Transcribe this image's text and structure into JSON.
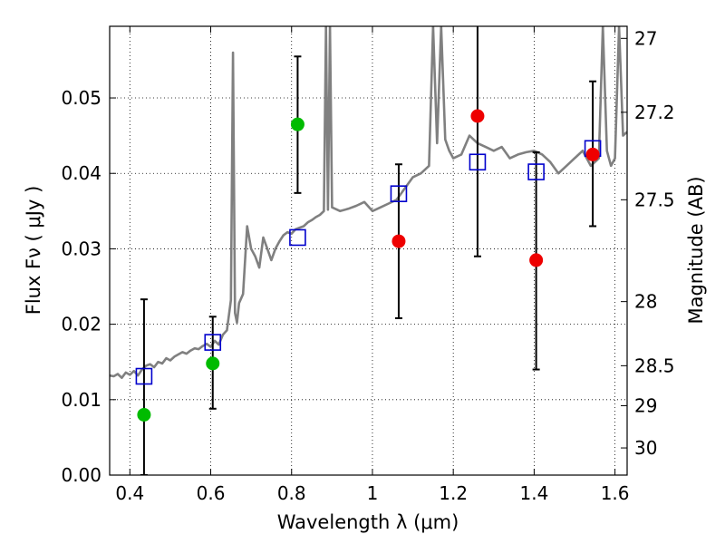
{
  "chart_data": {
    "type": "scatter",
    "xlabel": "Wavelength  λ (μm)",
    "ylabel": "Flux  Fν  ( μJy )",
    "ylabel_right": "Magnitude (AB)",
    "xlim": [
      0.35,
      1.63
    ],
    "ylim": [
      0.0,
      0.0595
    ],
    "x_ticks": [
      0.4,
      0.6,
      0.8,
      1.0,
      1.2,
      1.4,
      1.6
    ],
    "x_tick_labels": [
      "0.4",
      "0.6",
      "0.8",
      "1",
      "1.2",
      "1.4",
      "1.6"
    ],
    "y_ticks": [
      0.0,
      0.01,
      0.02,
      0.03,
      0.04,
      0.05
    ],
    "y_tick_labels": [
      "0.00",
      "0.01",
      "0.02",
      "0.03",
      "0.04",
      "0.05"
    ],
    "right_ticks": [
      {
        "label": "27",
        "flux": 0.0579
      },
      {
        "label": "27.2",
        "flux": 0.0481
      },
      {
        "label": "27.5",
        "flux": 0.0365
      },
      {
        "label": "28",
        "flux": 0.023
      },
      {
        "label": "28.5",
        "flux": 0.0145
      },
      {
        "label": "29",
        "flux": 0.0092
      },
      {
        "label": "30",
        "flux": 0.0036
      }
    ],
    "grid": true,
    "colors": {
      "spectrum": "#808080",
      "model": "#0000cc",
      "detections_green": "#00bb00",
      "detections_red": "#ee0000",
      "errorbar": "#000000"
    },
    "series": [
      {
        "kind": "line",
        "x": [
          0.35,
          0.36,
          0.37,
          0.38,
          0.39,
          0.4,
          0.41,
          0.42,
          0.43,
          0.44,
          0.45,
          0.46,
          0.47,
          0.48,
          0.49,
          0.5,
          0.51,
          0.52,
          0.53,
          0.54,
          0.55,
          0.56,
          0.57,
          0.58,
          0.59,
          0.6,
          0.61,
          0.62,
          0.63,
          0.64,
          0.65,
          0.655,
          0.66,
          0.665,
          0.67,
          0.68,
          0.69,
          0.7,
          0.71,
          0.72,
          0.73,
          0.74,
          0.75,
          0.76,
          0.77,
          0.78,
          0.79,
          0.8,
          0.81,
          0.82,
          0.83,
          0.84,
          0.85,
          0.86,
          0.87,
          0.88,
          0.885,
          0.89,
          0.895,
          0.9,
          0.92,
          0.94,
          0.96,
          0.98,
          1.0,
          1.02,
          1.04,
          1.06,
          1.08,
          1.1,
          1.12,
          1.14,
          1.15,
          1.16,
          1.17,
          1.18,
          1.19,
          1.2,
          1.22,
          1.24,
          1.26,
          1.28,
          1.3,
          1.32,
          1.34,
          1.36,
          1.38,
          1.4,
          1.42,
          1.44,
          1.46,
          1.48,
          1.5,
          1.52,
          1.54,
          1.56,
          1.57,
          1.58,
          1.59,
          1.6,
          1.61,
          1.62,
          1.63
        ],
        "values": [
          0.0132,
          0.0131,
          0.0134,
          0.0129,
          0.0136,
          0.0133,
          0.0138,
          0.0132,
          0.014,
          0.0145,
          0.0147,
          0.0143,
          0.015,
          0.0148,
          0.0155,
          0.0152,
          0.0157,
          0.016,
          0.0163,
          0.0161,
          0.0165,
          0.0168,
          0.0167,
          0.0171,
          0.0174,
          0.017,
          0.0178,
          0.0173,
          0.0186,
          0.0192,
          0.0232,
          0.056,
          0.0215,
          0.0202,
          0.0228,
          0.024,
          0.033,
          0.03,
          0.029,
          0.0275,
          0.0315,
          0.03,
          0.0285,
          0.03,
          0.031,
          0.0318,
          0.0322,
          0.032,
          0.0326,
          0.0328,
          0.033,
          0.0335,
          0.0338,
          0.0342,
          0.0345,
          0.035,
          0.0595,
          0.0352,
          0.0595,
          0.0355,
          0.035,
          0.0353,
          0.0357,
          0.0362,
          0.035,
          0.0355,
          0.036,
          0.0365,
          0.038,
          0.0395,
          0.04,
          0.041,
          0.0595,
          0.044,
          0.0595,
          0.0445,
          0.043,
          0.042,
          0.0425,
          0.045,
          0.044,
          0.0435,
          0.043,
          0.0435,
          0.042,
          0.0425,
          0.0428,
          0.043,
          0.0425,
          0.0415,
          0.04,
          0.041,
          0.042,
          0.043,
          0.041,
          0.042,
          0.0595,
          0.043,
          0.041,
          0.042,
          0.0595,
          0.045,
          0.0455
        ]
      },
      {
        "kind": "squares",
        "x": [
          0.435,
          0.605,
          0.815,
          1.065,
          1.26,
          1.405,
          1.545
        ],
        "values": [
          0.0131,
          0.0176,
          0.0315,
          0.0373,
          0.0415,
          0.0402,
          0.0433
        ]
      },
      {
        "kind": "points",
        "color": "green",
        "x": [
          0.435,
          0.605,
          0.815
        ],
        "values": [
          0.008,
          0.0148,
          0.0465
        ],
        "err_low": [
          0.0,
          0.0088,
          0.0374
        ],
        "err_high": [
          0.0233,
          0.021,
          0.0555
        ]
      },
      {
        "kind": "points",
        "color": "red",
        "x": [
          1.065,
          1.26,
          1.405,
          1.545
        ],
        "values": [
          0.031,
          0.0476,
          0.0285,
          0.0425
        ],
        "err_low": [
          0.0208,
          0.029,
          0.014,
          0.033
        ],
        "err_high": [
          0.0412,
          0.06,
          0.0428,
          0.0522
        ]
      }
    ]
  }
}
